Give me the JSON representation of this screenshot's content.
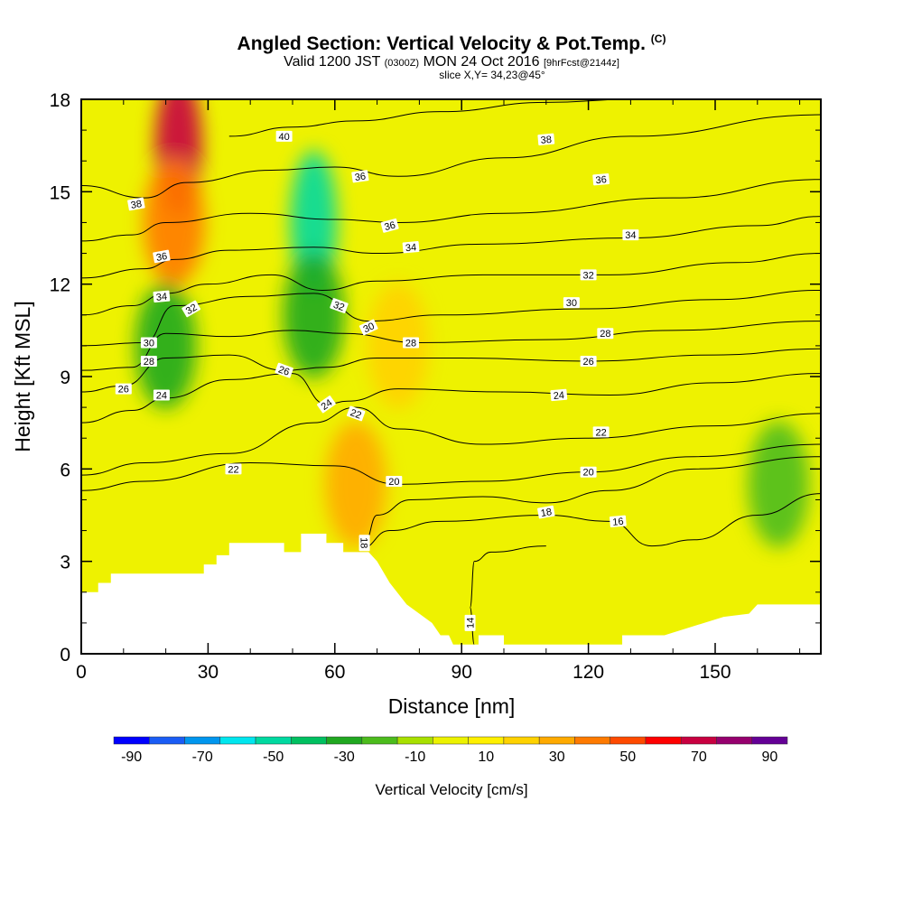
{
  "title": {
    "main": "Angled Section: Vertical Velocity & Pot.Temp.",
    "main_suffix": "(C)",
    "valid_prefix": "Valid 1200 JST",
    "valid_utc": "(0300Z)",
    "valid_date": "MON 24 Oct 2016",
    "valid_fcst": "[9hrFcst@2144z]",
    "slice": "slice X,Y= 34,23@45°"
  },
  "chart_data": {
    "type": "heatmap",
    "xlabel": "Distance [nm]",
    "ylabel": "Height [Kft MSL]",
    "xlim": [
      0,
      175
    ],
    "ylim": [
      0,
      18
    ],
    "xticks": [
      "0",
      "30",
      "60",
      "90",
      "120",
      "150"
    ],
    "yticks": [
      "0",
      "3",
      "6",
      "9",
      "12",
      "15",
      "18"
    ],
    "colorbar": {
      "title": "Vertical Velocity [cm/s]",
      "labels": [
        "-90",
        "-70",
        "-50",
        "-30",
        "-10",
        "10",
        "30",
        "50",
        "70",
        "90"
      ],
      "colors": [
        "#0000ff",
        "#1a5cf5",
        "#0096ee",
        "#00e6ee",
        "#00d9a0",
        "#00c060",
        "#20a820",
        "#4cbc1c",
        "#a8e000",
        "#ecf200",
        "#fff000",
        "#ffd200",
        "#ffaa00",
        "#ff7a00",
        "#ff4a00",
        "#ff0000",
        "#c80040",
        "#96006e",
        "#640096"
      ]
    },
    "velocity_features": [
      {
        "x": 23,
        "y": 16.5,
        "value": 70
      },
      {
        "x": 22,
        "y": 14.0,
        "value": 40
      },
      {
        "x": 55,
        "y": 14.0,
        "value": -50
      },
      {
        "x": 55,
        "y": 11.0,
        "value": -30
      },
      {
        "x": 20,
        "y": 10.0,
        "value": -30
      },
      {
        "x": 65,
        "y": 5.5,
        "value": 30
      },
      {
        "x": 75,
        "y": 10.0,
        "value": 20
      },
      {
        "x": 165,
        "y": 5.5,
        "value": -20
      }
    ],
    "terrain": [
      [
        0,
        2
      ],
      [
        4,
        2
      ],
      [
        4,
        2.3
      ],
      [
        7,
        2.3
      ],
      [
        7,
        2.6
      ],
      [
        29,
        2.6
      ],
      [
        29,
        2.9
      ],
      [
        32,
        2.9
      ],
      [
        32,
        3.2
      ],
      [
        35,
        3.2
      ],
      [
        35,
        3.6
      ],
      [
        48,
        3.6
      ],
      [
        48,
        3.3
      ],
      [
        52,
        3.3
      ],
      [
        52,
        3.9
      ],
      [
        58,
        3.9
      ],
      [
        58,
        3.6
      ],
      [
        62,
        3.6
      ],
      [
        62,
        3.3
      ],
      [
        68,
        3.3
      ],
      [
        70,
        3
      ],
      [
        73,
        2.3
      ],
      [
        77,
        1.6
      ],
      [
        80,
        1.3
      ],
      [
        83,
        1
      ],
      [
        85,
        0.6
      ],
      [
        87,
        0.6
      ],
      [
        88,
        0.3
      ],
      [
        94,
        0.3
      ],
      [
        94,
        0.6
      ],
      [
        100,
        0.6
      ],
      [
        100,
        0.3
      ],
      [
        128,
        0.3
      ],
      [
        128,
        0.6
      ],
      [
        138,
        0.6
      ],
      [
        145,
        0.9
      ],
      [
        152,
        1.2
      ],
      [
        158,
        1.3
      ],
      [
        160,
        1.6
      ],
      [
        175,
        1.6
      ]
    ],
    "isentropes": [
      {
        "level": "14",
        "points": [
          [
            93,
            0.3
          ],
          [
            92,
            1.5
          ],
          [
            93,
            3
          ],
          [
            97,
            3.3
          ],
          [
            110,
            3.5
          ]
        ]
      },
      {
        "level": "16",
        "points": [
          [
            66,
            3.4
          ],
          [
            73,
            4
          ],
          [
            85,
            4.3
          ],
          [
            110,
            4.5
          ],
          [
            125,
            4.3
          ],
          [
            135,
            3.5
          ],
          [
            145,
            3.7
          ],
          [
            160,
            4.5
          ],
          [
            175,
            5.2
          ]
        ]
      },
      {
        "level": "18",
        "points": [
          [
            67,
            3.6
          ],
          [
            70,
            4.5
          ],
          [
            78,
            5
          ],
          [
            95,
            5.1
          ],
          [
            110,
            4.9
          ],
          [
            125,
            5.3
          ],
          [
            145,
            6
          ],
          [
            175,
            6.4
          ]
        ]
      },
      {
        "level": "20",
        "points": [
          [
            0,
            5.3
          ],
          [
            15,
            5.6
          ],
          [
            40,
            6.2
          ],
          [
            60,
            6.1
          ],
          [
            75,
            5.5
          ],
          [
            95,
            5.6
          ],
          [
            120,
            5.9
          ],
          [
            145,
            6.4
          ],
          [
            175,
            6.8
          ]
        ]
      },
      {
        "level": "22",
        "points": [
          [
            0,
            5.8
          ],
          [
            15,
            6.2
          ],
          [
            35,
            6.5
          ],
          [
            55,
            7.5
          ],
          [
            65,
            8
          ],
          [
            75,
            7.3
          ],
          [
            95,
            6.8
          ],
          [
            120,
            7.0
          ],
          [
            150,
            7.4
          ],
          [
            175,
            7.8
          ]
        ]
      },
      {
        "level": "24",
        "points": [
          [
            0,
            7.5
          ],
          [
            12,
            7.9
          ],
          [
            20,
            8.3
          ],
          [
            35,
            8.9
          ],
          [
            50,
            9.1
          ],
          [
            58,
            8.1
          ],
          [
            63,
            8.2
          ],
          [
            75,
            8.6
          ],
          [
            100,
            8.5
          ],
          [
            125,
            8.4
          ],
          [
            150,
            8.8
          ],
          [
            175,
            9.1
          ]
        ]
      },
      {
        "level": "26",
        "points": [
          [
            0,
            8.5
          ],
          [
            10,
            8.7
          ],
          [
            20,
            9.6
          ],
          [
            35,
            9.7
          ],
          [
            48,
            9.2
          ],
          [
            58,
            9.3
          ],
          [
            70,
            9.6
          ],
          [
            90,
            9.6
          ],
          [
            120,
            9.5
          ],
          [
            150,
            9.7
          ],
          [
            175,
            9.9
          ]
        ]
      },
      {
        "level": "28",
        "points": [
          [
            0,
            9.2
          ],
          [
            12,
            9.3
          ],
          [
            20,
            10.4
          ],
          [
            35,
            10.3
          ],
          [
            50,
            10.5
          ],
          [
            62,
            10.4
          ],
          [
            80,
            10.1
          ],
          [
            110,
            10.2
          ],
          [
            140,
            10.5
          ],
          [
            175,
            10.8
          ]
        ]
      },
      {
        "level": "30",
        "points": [
          [
            0,
            10.0
          ],
          [
            15,
            10.1
          ],
          [
            22,
            11.3
          ],
          [
            40,
            11.6
          ],
          [
            55,
            11.7
          ],
          [
            68,
            10.8
          ],
          [
            85,
            11.0
          ],
          [
            120,
            11.2
          ],
          [
            150,
            11.5
          ],
          [
            175,
            11.8
          ]
        ]
      },
      {
        "level": "32",
        "points": [
          [
            0,
            11.0
          ],
          [
            12,
            11.3
          ],
          [
            20,
            11.7
          ],
          [
            30,
            12.0
          ],
          [
            45,
            12.3
          ],
          [
            57,
            11.8
          ],
          [
            70,
            12.1
          ],
          [
            95,
            12.3
          ],
          [
            125,
            12.3
          ],
          [
            155,
            12.7
          ],
          [
            175,
            13.0
          ]
        ]
      },
      {
        "level": "34",
        "points": [
          [
            0,
            12.2
          ],
          [
            15,
            12.5
          ],
          [
            22,
            12.8
          ],
          [
            35,
            13.1
          ],
          [
            55,
            13.2
          ],
          [
            70,
            13.0
          ],
          [
            95,
            13.3
          ],
          [
            130,
            13.5
          ],
          [
            160,
            13.9
          ],
          [
            175,
            14.2
          ]
        ]
      },
      {
        "level": "36",
        "points": [
          [
            0,
            13.4
          ],
          [
            12,
            13.6
          ],
          [
            20,
            14.0
          ],
          [
            40,
            14.3
          ],
          [
            60,
            14.1
          ],
          [
            75,
            14.0
          ],
          [
            100,
            14.3
          ],
          [
            140,
            14.8
          ],
          [
            175,
            15.4
          ]
        ]
      },
      {
        "level": "38",
        "points": [
          [
            0,
            15.2
          ],
          [
            15,
            14.8
          ],
          [
            25,
            15.3
          ],
          [
            45,
            15.7
          ],
          [
            60,
            15.8
          ],
          [
            75,
            15.5
          ],
          [
            100,
            16.1
          ],
          [
            130,
            16.8
          ],
          [
            175,
            17.5
          ]
        ]
      },
      {
        "level": "40",
        "points": [
          [
            35,
            16.8
          ],
          [
            50,
            17.1
          ],
          [
            65,
            17.3
          ],
          [
            85,
            17.6
          ],
          [
            110,
            17.9
          ],
          [
            130,
            18.0
          ]
        ]
      }
    ],
    "contour_labels": [
      {
        "text": "40",
        "x": 48,
        "y": 16.8,
        "angle": 0
      },
      {
        "text": "38",
        "x": 13,
        "y": 14.6,
        "angle": -10
      },
      {
        "text": "38",
        "x": 110,
        "y": 16.7,
        "angle": -5
      },
      {
        "text": "36",
        "x": 66,
        "y": 15.5,
        "angle": -8
      },
      {
        "text": "36",
        "x": 123,
        "y": 15.4,
        "angle": -5
      },
      {
        "text": "36",
        "x": 19,
        "y": 12.9,
        "angle": -10
      },
      {
        "text": "36",
        "x": 73,
        "y": 13.9,
        "angle": -15
      },
      {
        "text": "34",
        "x": 19,
        "y": 11.6,
        "angle": -5
      },
      {
        "text": "34",
        "x": 78,
        "y": 13.2,
        "angle": -5
      },
      {
        "text": "34",
        "x": 130,
        "y": 13.6,
        "angle": 0
      },
      {
        "text": "32",
        "x": 26,
        "y": 11.2,
        "angle": -30
      },
      {
        "text": "32",
        "x": 61,
        "y": 11.3,
        "angle": 20
      },
      {
        "text": "32",
        "x": 120,
        "y": 12.3,
        "angle": 0
      },
      {
        "text": "30",
        "x": 16,
        "y": 10.1,
        "angle": 0
      },
      {
        "text": "30",
        "x": 68,
        "y": 10.6,
        "angle": -25
      },
      {
        "text": "30",
        "x": 116,
        "y": 11.4,
        "angle": 0
      },
      {
        "text": "28",
        "x": 16,
        "y": 9.5,
        "angle": 0
      },
      {
        "text": "28",
        "x": 78,
        "y": 10.1,
        "angle": 0
      },
      {
        "text": "28",
        "x": 124,
        "y": 10.4,
        "angle": 0
      },
      {
        "text": "26",
        "x": 10,
        "y": 8.6,
        "angle": 0
      },
      {
        "text": "26",
        "x": 48,
        "y": 9.2,
        "angle": 20
      },
      {
        "text": "26",
        "x": 120,
        "y": 9.5,
        "angle": 0
      },
      {
        "text": "24",
        "x": 19,
        "y": 8.4,
        "angle": 0
      },
      {
        "text": "24",
        "x": 58,
        "y": 8.1,
        "angle": -35
      },
      {
        "text": "24",
        "x": 113,
        "y": 8.4,
        "angle": -5
      },
      {
        "text": "22",
        "x": 36,
        "y": 6.0,
        "angle": 0
      },
      {
        "text": "22",
        "x": 65,
        "y": 7.8,
        "angle": 20
      },
      {
        "text": "22",
        "x": 123,
        "y": 7.2,
        "angle": 0
      },
      {
        "text": "20",
        "x": 74,
        "y": 5.6,
        "angle": 0
      },
      {
        "text": "20",
        "x": 120,
        "y": 5.9,
        "angle": 0
      },
      {
        "text": "18",
        "x": 110,
        "y": 4.6,
        "angle": -10
      },
      {
        "text": "18",
        "x": 67,
        "y": 3.6,
        "angle": 90
      },
      {
        "text": "16",
        "x": 127,
        "y": 4.3,
        "angle": -5
      },
      {
        "text": "14",
        "x": 92,
        "y": 1.0,
        "angle": -90
      }
    ]
  }
}
